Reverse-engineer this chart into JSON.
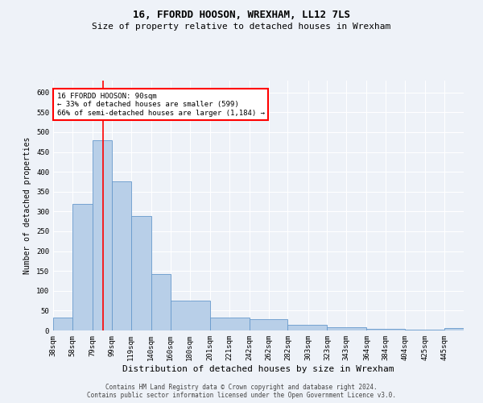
{
  "title": "16, FFORDD HOOSON, WREXHAM, LL12 7LS",
  "subtitle": "Size of property relative to detached houses in Wrexham",
  "xlabel": "Distribution of detached houses by size in Wrexham",
  "ylabel": "Number of detached properties",
  "bar_values": [
    32,
    320,
    480,
    375,
    288,
    143,
    75,
    32,
    28,
    15,
    8,
    5,
    3,
    6
  ],
  "bin_left_edges": [
    38,
    58,
    79,
    99,
    119,
    140,
    160,
    201,
    242,
    282,
    323,
    364,
    404,
    445
  ],
  "bin_right_edges": [
    58,
    79,
    99,
    119,
    140,
    160,
    201,
    242,
    282,
    323,
    364,
    404,
    445,
    465
  ],
  "tick_positions": [
    38,
    58,
    79,
    99,
    119,
    140,
    160,
    180,
    201,
    221,
    242,
    262,
    282,
    303,
    323,
    343,
    364,
    384,
    404,
    425,
    445
  ],
  "tick_labels": [
    "38sqm",
    "58sqm",
    "79sqm",
    "99sqm",
    "119sqm",
    "140sqm",
    "160sqm",
    "180sqm",
    "201sqm",
    "221sqm",
    "242sqm",
    "262sqm",
    "282sqm",
    "303sqm",
    "323sqm",
    "343sqm",
    "364sqm",
    "384sqm",
    "404sqm",
    "425sqm",
    "445sqm"
  ],
  "bar_color": "#b8cfe8",
  "bar_edge_color": "#6699cc",
  "vline_x": 90,
  "vline_color": "red",
  "annotation_text": "16 FFORDD HOOSON: 90sqm\n← 33% of detached houses are smaller (599)\n66% of semi-detached houses are larger (1,184) →",
  "annotation_box_color": "white",
  "annotation_box_edge": "red",
  "ylim": [
    0,
    630
  ],
  "yticks": [
    0,
    50,
    100,
    150,
    200,
    250,
    300,
    350,
    400,
    450,
    500,
    550,
    600
  ],
  "footer_text": "Contains HM Land Registry data © Crown copyright and database right 2024.\nContains public sector information licensed under the Open Government Licence v3.0.",
  "background_color": "#eef2f8",
  "grid_color": "white",
  "title_fontsize": 9,
  "subtitle_fontsize": 8,
  "xlabel_fontsize": 8,
  "ylabel_fontsize": 7,
  "tick_fontsize": 6.5,
  "footer_fontsize": 5.5
}
